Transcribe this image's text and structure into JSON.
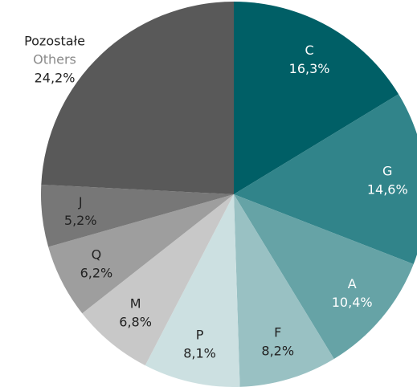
{
  "chart_data": {
    "type": "pie",
    "categories": [
      "C",
      "G",
      "A",
      "F",
      "P",
      "M",
      "Q",
      "J",
      "Pozostałe"
    ],
    "category_notes": [
      null,
      null,
      null,
      null,
      null,
      null,
      null,
      null,
      "Others"
    ],
    "values": [
      16.3,
      14.6,
      10.4,
      8.2,
      8.1,
      6.8,
      6.2,
      5.2,
      24.2
    ],
    "value_labels": [
      "16,3%",
      "14,6%",
      "10,4%",
      "8,2%",
      "8,1%",
      "6,8%",
      "6,2%",
      "5,2%",
      "24,2%"
    ],
    "colors": [
      "#005f66",
      "#31848a",
      "#66a3a6",
      "#99c1c3",
      "#cce0e1",
      "#c8c8c8",
      "#9e9e9e",
      "#777777",
      "#595959"
    ],
    "label_colors": [
      "#ffffff",
      "#ffffff",
      "#ffffff",
      "#222222",
      "#222222",
      "#222222",
      "#222222",
      "#222222",
      "#222222"
    ]
  }
}
